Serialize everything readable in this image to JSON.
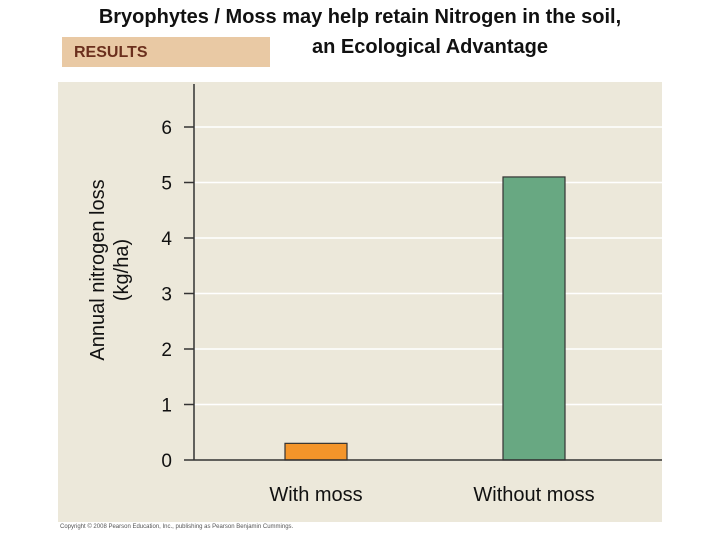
{
  "header": {
    "title_line1": "Bryophytes / Moss may help retain Nitrogen in the soil,",
    "title_line2": "an Ecological Advantage",
    "results_tag": "RESULTS"
  },
  "footer": {
    "copyright": "Copyright © 2008 Pearson Education, Inc., publishing as Pearson Benjamin Cummings."
  },
  "colors": {
    "panel_bg": "#ece8da",
    "with_moss_bar": "#f4952a",
    "without_moss_bar": "#68a882"
  },
  "chart_data": {
    "type": "bar",
    "title": "",
    "ylabel_lines": [
      "Annual nitrogen loss",
      "(kg/ha)"
    ],
    "xlabel": "",
    "categories": [
      "With moss",
      "Without moss"
    ],
    "values": [
      0.3,
      5.1
    ],
    "ylim": [
      0,
      6
    ],
    "yticks": [
      0,
      1,
      2,
      3,
      4,
      5,
      6
    ],
    "grid": true
  }
}
